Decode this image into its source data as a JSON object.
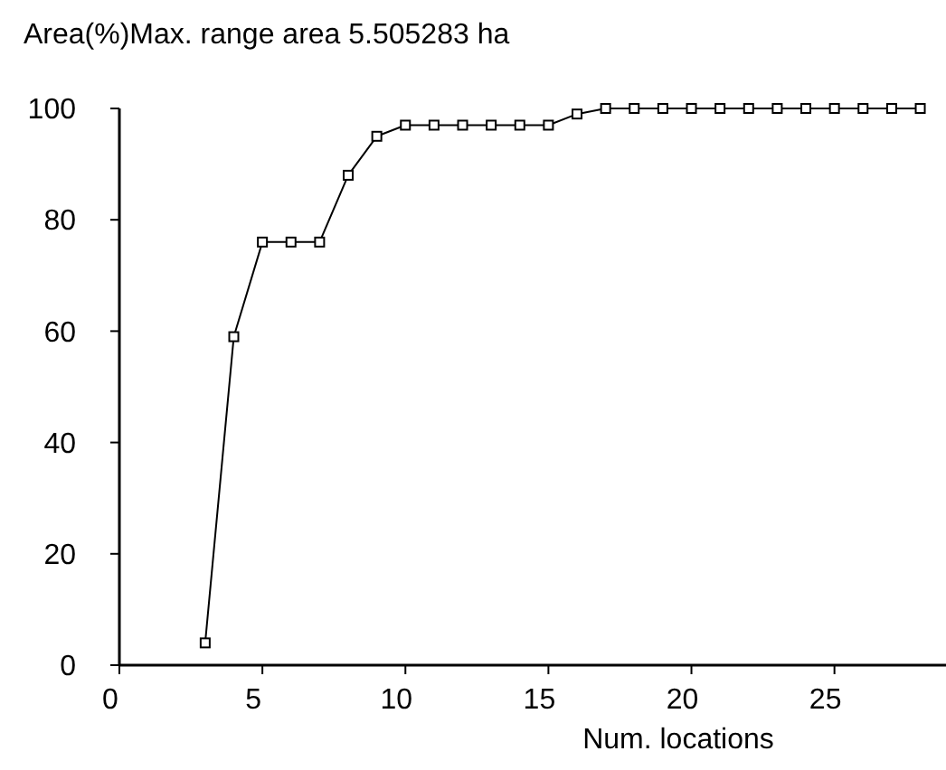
{
  "chart_data": {
    "type": "line",
    "title": "Area(%)Max. range area 5.505283 ha",
    "xlabel": "Num. locations",
    "x": [
      3,
      4,
      5,
      6,
      7,
      8,
      9,
      10,
      11,
      12,
      13,
      14,
      15,
      16,
      17,
      18,
      19,
      20,
      21,
      22,
      23,
      24,
      25,
      26,
      27,
      28
    ],
    "series": [
      {
        "color": "#000000",
        "values": [
          4,
          59,
          76,
          76,
          76,
          88,
          95,
          97,
          97,
          97,
          97,
          97,
          97,
          99,
          100,
          100,
          100,
          100,
          100,
          100,
          100,
          100,
          100,
          100,
          100,
          100
        ]
      }
    ],
    "xlim": [
      0,
      28.9
    ],
    "xticks": [
      0,
      5,
      10,
      15,
      20,
      25
    ],
    "ylim": [
      0,
      100
    ],
    "yticks": [
      0,
      20,
      40,
      60,
      80,
      100
    ],
    "grid": false,
    "marker": "square",
    "line_style": "solid"
  }
}
